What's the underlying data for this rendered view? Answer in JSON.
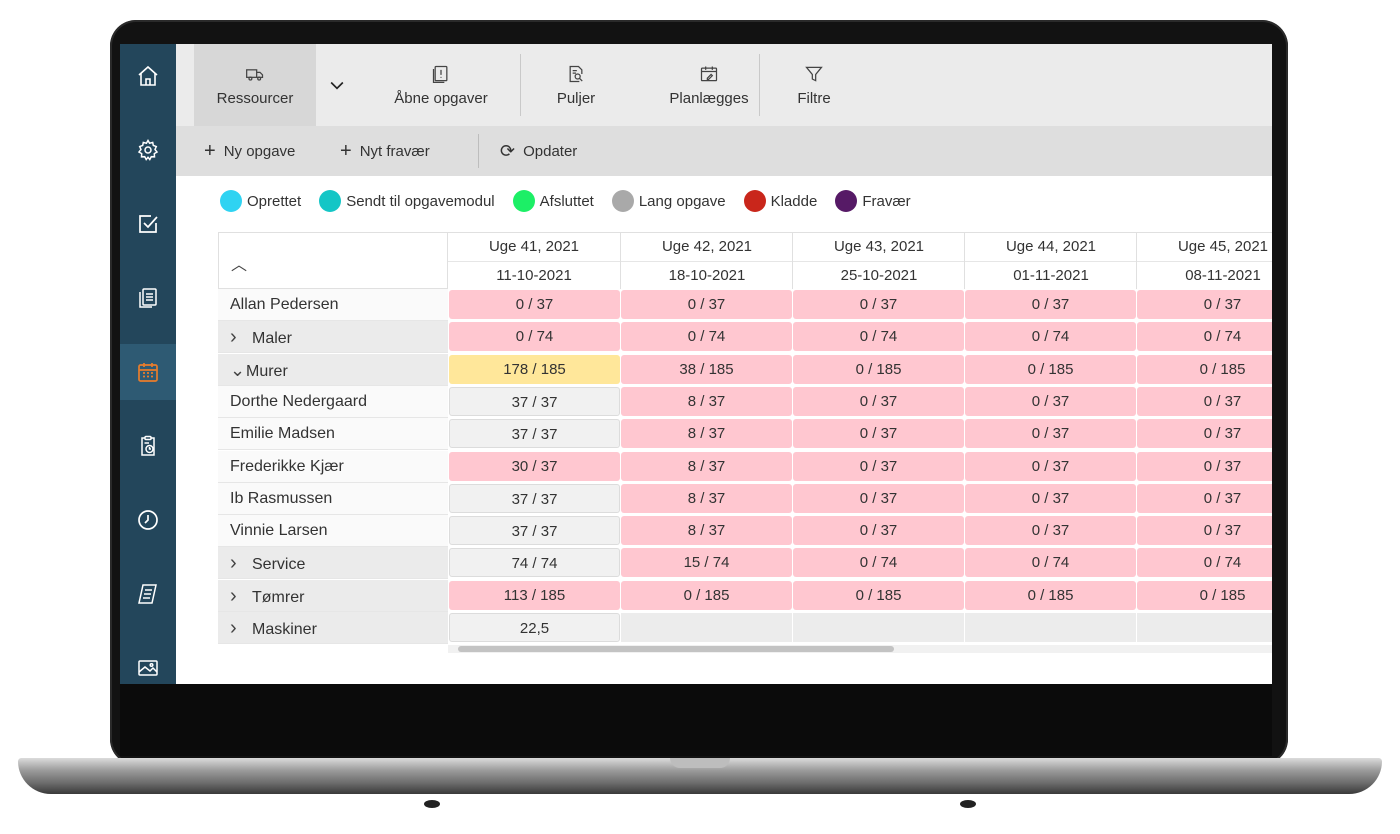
{
  "sidebar": {
    "items": [
      {
        "icon": "home-icon"
      },
      {
        "icon": "gear-icon"
      },
      {
        "icon": "checkbox-icon"
      },
      {
        "icon": "documents-icon"
      },
      {
        "icon": "calendar-icon",
        "active": true
      },
      {
        "icon": "clipboard-clock-icon"
      },
      {
        "icon": "clock-icon"
      },
      {
        "icon": "notebook-icon"
      },
      {
        "icon": "image-icon"
      }
    ],
    "active_color": "#e97d2b"
  },
  "toolbar": {
    "ressourcer": "Ressourcer",
    "aabne_opgaver": "Åbne opgaver",
    "puljer": "Puljer",
    "planlaegges": "Planlægges",
    "filtre": "Filtre"
  },
  "actions": {
    "ny_opgave": "Ny opgave",
    "nyt_fravaer": "Nyt fravær",
    "opdater": "Opdater"
  },
  "legend": [
    {
      "label": "Oprettet",
      "color": "#2fd3f2"
    },
    {
      "label": "Sendt til opgavemodul",
      "color": "#14c6c6"
    },
    {
      "label": "Afsluttet",
      "color": "#1cef66"
    },
    {
      "label": "Lang opgave",
      "color": "#a9a9a9"
    },
    {
      "label": "Kladde",
      "color": "#c9261b"
    },
    {
      "label": "Fravær",
      "color": "#561a66"
    }
  ],
  "columns": [
    {
      "week": "Uge 41, 2021",
      "date": "11-10-2021"
    },
    {
      "week": "Uge 42, 2021",
      "date": "18-10-2021"
    },
    {
      "week": "Uge 43, 2021",
      "date": "25-10-2021"
    },
    {
      "week": "Uge 44, 2021",
      "date": "01-11-2021"
    },
    {
      "week": "Uge 45, 2021",
      "date": "08-11-2021"
    }
  ],
  "rows": [
    {
      "label": "Allan Pedersen",
      "type": "person",
      "toggle": "",
      "cells": [
        "0 / 37",
        "0 / 37",
        "0 / 37",
        "0 / 37",
        "0 / 37"
      ],
      "status": [
        "pink",
        "pink",
        "pink",
        "pink",
        "pink"
      ]
    },
    {
      "label": "Maler",
      "type": "group",
      "toggle": ">",
      "cells": [
        "0 / 74",
        "0 / 74",
        "0 / 74",
        "0 / 74",
        "0 / 74"
      ],
      "status": [
        "pink",
        "pink",
        "pink",
        "pink",
        "pink"
      ]
    },
    {
      "label": "Murer",
      "type": "group",
      "toggle": "v",
      "cells": [
        "178 / 185",
        "38 / 185",
        "0 / 185",
        "0 / 185",
        "0 / 185"
      ],
      "status": [
        "yellow",
        "pink",
        "pink",
        "pink",
        "pink"
      ]
    },
    {
      "label": "Dorthe Nedergaard",
      "type": "person",
      "toggle": "",
      "cells": [
        "37 / 37",
        "8 / 37",
        "0 / 37",
        "0 / 37",
        "0 / 37"
      ],
      "status": [
        "grey",
        "pink",
        "pink",
        "pink",
        "pink"
      ]
    },
    {
      "label": "Emilie Madsen",
      "type": "person",
      "toggle": "",
      "cells": [
        "37 / 37",
        "8 / 37",
        "0 / 37",
        "0 / 37",
        "0 / 37"
      ],
      "status": [
        "grey",
        "pink",
        "pink",
        "pink",
        "pink"
      ]
    },
    {
      "label": "Frederikke Kjær",
      "type": "person",
      "toggle": "",
      "cells": [
        "30 / 37",
        "8 / 37",
        "0 / 37",
        "0 / 37",
        "0 / 37"
      ],
      "status": [
        "pink",
        "pink",
        "pink",
        "pink",
        "pink"
      ]
    },
    {
      "label": "Ib Rasmussen",
      "type": "person",
      "toggle": "",
      "cells": [
        "37 / 37",
        "8 / 37",
        "0 / 37",
        "0 / 37",
        "0 / 37"
      ],
      "status": [
        "grey",
        "pink",
        "pink",
        "pink",
        "pink"
      ]
    },
    {
      "label": "Vinnie Larsen",
      "type": "person",
      "toggle": "",
      "cells": [
        "37 / 37",
        "8 / 37",
        "0 / 37",
        "0 / 37",
        "0 / 37"
      ],
      "status": [
        "grey",
        "pink",
        "pink",
        "pink",
        "pink"
      ]
    },
    {
      "label": "Service",
      "type": "group",
      "toggle": ">",
      "cells": [
        "74 / 74",
        "15 / 74",
        "0 / 74",
        "0 / 74",
        "0 / 74"
      ],
      "status": [
        "grey",
        "pink",
        "pink",
        "pink",
        "pink"
      ]
    },
    {
      "label": "Tømrer",
      "type": "group",
      "toggle": ">",
      "cells": [
        "113 / 185",
        "0 / 185",
        "0 / 185",
        "0 / 185",
        "0 / 185"
      ],
      "status": [
        "pink",
        "pink",
        "pink",
        "pink",
        "pink"
      ]
    },
    {
      "label": "Maskiner",
      "type": "group",
      "toggle": ">",
      "cells": [
        "22,5",
        "",
        "",
        "",
        ""
      ],
      "status": [
        "grey",
        "empty",
        "empty",
        "empty",
        "empty"
      ]
    }
  ]
}
